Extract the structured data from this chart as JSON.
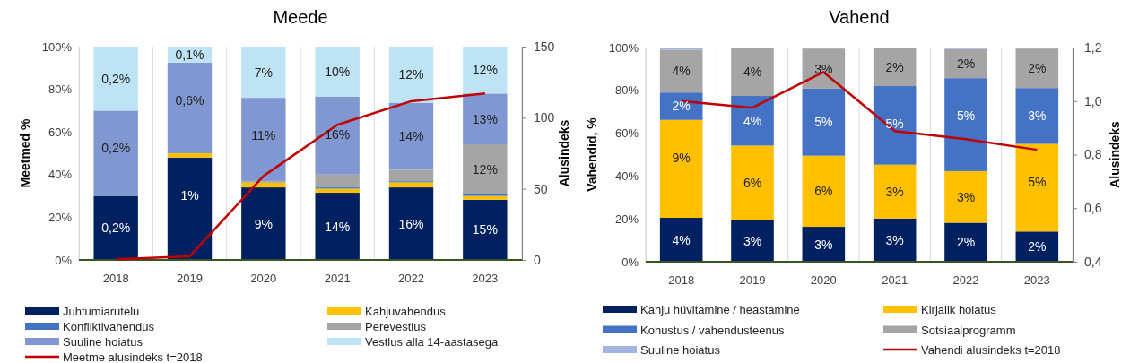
{
  "chart_data": [
    {
      "type": "bar",
      "title": "Meede",
      "ylabel": "Meetmed %",
      "y2label": "Alusindeks",
      "stacked": true,
      "grid": "x",
      "legend": "bottom",
      "categories": [
        "2018",
        "2019",
        "2020",
        "2021",
        "2022",
        "2023"
      ],
      "ylim": [
        0,
        100
      ],
      "yticks": [
        {
          "value": 0,
          "label": "0%"
        },
        {
          "value": 20,
          "label": "20%"
        },
        {
          "value": 40,
          "label": "40%"
        },
        {
          "value": 60,
          "label": "60%"
        },
        {
          "value": 80,
          "label": "80%"
        },
        {
          "value": 100,
          "label": "100%"
        }
      ],
      "y2lim": [
        0,
        150
      ],
      "y2ticks": [
        0,
        50,
        100,
        150
      ],
      "series": [
        {
          "name": "Juhtumiarutelu",
          "color": "#002060",
          "values": [
            30,
            48,
            34,
            31.5,
            34,
            28.2
          ]
        },
        {
          "name": "Kahjuvahendus",
          "color": "#ffc000",
          "values": [
            0,
            2,
            2.4,
            1.9,
            2.4,
            1.8
          ]
        },
        {
          "name": "Konfliktivahendus",
          "color": "#4472c4",
          "values": [
            0,
            0,
            0.3,
            0.6,
            0.5,
            0.7
          ]
        },
        {
          "name": "Perevestlus",
          "color": "#a5a5a5",
          "values": [
            0,
            0,
            0.3,
            6,
            5.4,
            23.5
          ]
        },
        {
          "name": "Suuline hoiatus",
          "color": "#8097d1",
          "values": [
            40,
            42.5,
            39,
            36.6,
            31.4,
            23.8
          ]
        },
        {
          "name": "Vestlus alla 14-aastasega",
          "color": "#bde3f4",
          "values": [
            30,
            7.5,
            24,
            23.4,
            26.3,
            22
          ]
        },
        {
          "name": "Meetme alusindeks t=2018",
          "type": "line",
          "axis": "y2",
          "color": "#c00000",
          "values": [
            0.5,
            2.5,
            59,
            95,
            111.6,
            117
          ]
        }
      ],
      "annotations": [
        {
          "text": "0,2%",
          "x": "2018",
          "y": 30
        },
        {
          "text": "1%",
          "x": "2019",
          "y": 48
        },
        {
          "text": "9%",
          "x": "2020",
          "y": 34
        },
        {
          "text": "14%",
          "x": "2021",
          "y": 31.5
        },
        {
          "text": "16%",
          "x": "2022",
          "y": 34
        },
        {
          "text": "15%",
          "x": "2023",
          "y": 28.2
        },
        {
          "text": "12%",
          "x": "2023",
          "y": 54.2
        },
        {
          "text": "0,2%",
          "x": "2018",
          "y": 70
        },
        {
          "text": "0,6%",
          "x": "2019",
          "y": 92.5
        },
        {
          "text": "11%",
          "x": "2020",
          "y": 76
        },
        {
          "text": "16%",
          "x": "2021",
          "y": 76.6
        },
        {
          "text": "14%",
          "x": "2022",
          "y": 73.7
        },
        {
          "text": "13%",
          "x": "2023",
          "y": 78
        },
        {
          "text": "0,2%",
          "x": "2018",
          "y": 100
        },
        {
          "text": "0,1%",
          "x": "2019",
          "y": 100
        },
        {
          "text": "7%",
          "x": "2020",
          "y": 100
        },
        {
          "text": "10%",
          "x": "2021",
          "y": 100
        },
        {
          "text": "12%",
          "x": "2022",
          "y": 100
        },
        {
          "text": "12%",
          "x": "2023",
          "y": 100
        }
      ]
    },
    {
      "type": "bar",
      "title": "Vahend",
      "ylabel": "Vahendid, %",
      "y2label": "Alusindeks",
      "stacked": true,
      "grid": "x",
      "legend": "bottom",
      "categories": [
        "2018",
        "2019",
        "2020",
        "2021",
        "2022",
        "2023"
      ],
      "ylim": [
        0,
        100
      ],
      "yticks": [
        {
          "value": 0,
          "label": "0%"
        },
        {
          "value": 20,
          "label": "20%"
        },
        {
          "value": 40,
          "label": "40%"
        },
        {
          "value": 60,
          "label": "60%"
        },
        {
          "value": 80,
          "label": "80%"
        },
        {
          "value": 100,
          "label": "100%"
        }
      ],
      "y2lim": [
        0.4,
        1.2
      ],
      "y2ticks": [
        {
          "value": 0.4,
          "label": "0,4"
        },
        {
          "value": 0.6,
          "label": "0,6"
        },
        {
          "value": 0.8,
          "label": "0,8"
        },
        {
          "value": 1.0,
          "label": "1,0"
        },
        {
          "value": 1.2,
          "label": "1,2"
        }
      ],
      "series": [
        {
          "name": "Kahju hüvitamine / heastamine",
          "color": "#002060",
          "values": [
            20.5,
            19.4,
            16.3,
            20.2,
            18.2,
            14.1
          ]
        },
        {
          "name": "Kirjalik hoiatus",
          "color": "#ffc000",
          "values": [
            45.7,
            34.8,
            33.2,
            25.1,
            24.1,
            40.9
          ]
        },
        {
          "name": "Kohustus / vahendusteenus",
          "color": "#4472c4",
          "values": [
            12.8,
            23.2,
            31.3,
            36.7,
            43.4,
            26.1
          ]
        },
        {
          "name": "Sotsiaalprogramm",
          "color": "#a5a5a5",
          "values": [
            20,
            22.6,
            18.7,
            17.7,
            13.6,
            18.4
          ]
        },
        {
          "name": "Suuline hoiatus",
          "color": "#a3b4e0",
          "values": [
            1,
            0,
            0.5,
            0.3,
            0.7,
            0.5
          ]
        },
        {
          "name": "Vahendi alusindeks t=2018",
          "type": "line",
          "axis": "y2",
          "color": "#c00000",
          "values": [
            1.0,
            0.975,
            1.108,
            0.888,
            0.858,
            0.818
          ]
        }
      ],
      "annotations": [
        {
          "text": "4%",
          "x": "2018",
          "y": 20.5
        },
        {
          "text": "3%",
          "x": "2019",
          "y": 19.4
        },
        {
          "text": "3%",
          "x": "2020",
          "y": 16.3
        },
        {
          "text": "3%",
          "x": "2021",
          "y": 20.2
        },
        {
          "text": "2%",
          "x": "2022",
          "y": 18.2
        },
        {
          "text": "2%",
          "x": "2023",
          "y": 14.1
        },
        {
          "text": "9%",
          "x": "2018",
          "y": 66.2
        },
        {
          "text": "6%",
          "x": "2019",
          "y": 54.2
        },
        {
          "text": "6%",
          "x": "2020",
          "y": 49.5
        },
        {
          "text": "3%",
          "x": "2021",
          "y": 45.3
        },
        {
          "text": "3%",
          "x": "2022",
          "y": 42.3
        },
        {
          "text": "5%",
          "x": "2023",
          "y": 55
        },
        {
          "text": "2%",
          "x": "2018",
          "y": 79
        },
        {
          "text": "4%",
          "x": "2019",
          "y": 77.4
        },
        {
          "text": "5%",
          "x": "2020",
          "y": 80.8
        },
        {
          "text": "5%",
          "x": "2021",
          "y": 82
        },
        {
          "text": "5%",
          "x": "2022",
          "y": 85.7
        },
        {
          "text": "3%",
          "x": "2023",
          "y": 81.1
        },
        {
          "text": "4%",
          "x": "2018",
          "y": 99
        },
        {
          "text": "4%",
          "x": "2019",
          "y": 100
        },
        {
          "text": "3%",
          "x": "2020",
          "y": 99.5
        },
        {
          "text": "2%",
          "x": "2021",
          "y": 99.7
        },
        {
          "text": "2%",
          "x": "2022",
          "y": 99.3
        },
        {
          "text": "2%",
          "x": "2023",
          "y": 99.5
        }
      ]
    }
  ]
}
